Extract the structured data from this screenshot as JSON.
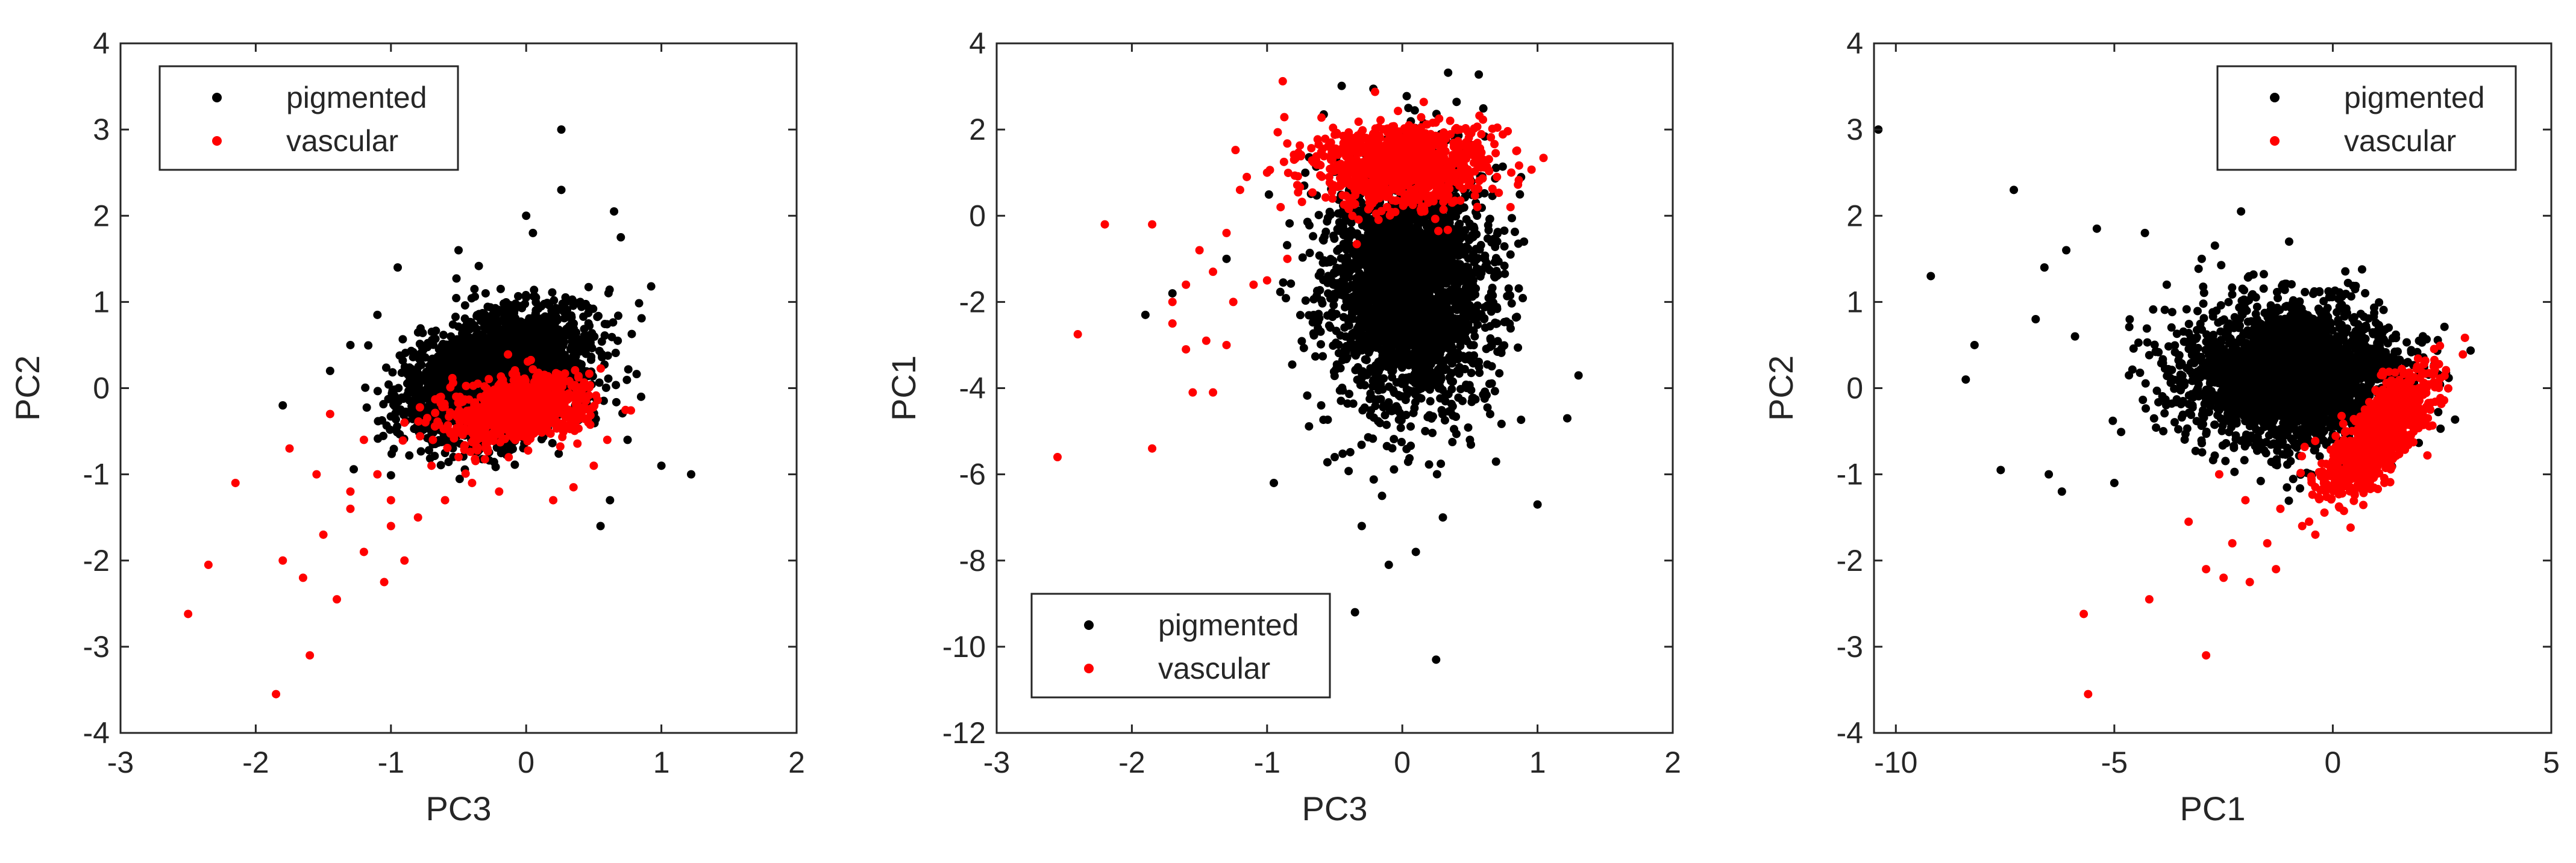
{
  "colors": {
    "pigmented": "#000000",
    "vascular": "#ff0000",
    "axis": "#262626",
    "background": "#ffffff"
  },
  "chart_data": [
    {
      "type": "scatter",
      "xlabel": "PC3",
      "ylabel": "PC2",
      "xlim": [
        -3,
        2
      ],
      "ylim": [
        -4,
        4
      ],
      "xticks": [
        -3,
        -2,
        -1,
        0,
        1,
        2
      ],
      "yticks": [
        -4,
        -3,
        -2,
        -1,
        0,
        1,
        2,
        3,
        4
      ],
      "grid": false,
      "legend_position": "top-left",
      "series": [
        {
          "name": "pigmented",
          "color": "#000000",
          "cloud": {
            "n": 2600,
            "cx": -0.2,
            "cy": 0.15,
            "sx": 0.33,
            "sy": 0.38,
            "rho": 0.35
          },
          "points": [
            [
              0.26,
              3.0
            ],
            [
              0.26,
              2.3
            ],
            [
              0.65,
              2.05
            ],
            [
              0.7,
              1.75
            ],
            [
              0.0,
              2.0
            ],
            [
              0.05,
              1.8
            ],
            [
              -0.5,
              1.6
            ],
            [
              -0.95,
              1.4
            ],
            [
              -1.1,
              0.85
            ],
            [
              -1.3,
              0.5
            ],
            [
              -1.45,
              0.2
            ],
            [
              -1.8,
              -0.2
            ],
            [
              1.22,
              -1.0
            ],
            [
              1.0,
              -0.9
            ],
            [
              0.85,
              -0.1
            ],
            [
              0.75,
              -0.6
            ],
            [
              0.55,
              -1.6
            ],
            [
              0.62,
              -1.3
            ],
            [
              -0.3,
              1.1
            ],
            [
              0.4,
              1.0
            ]
          ]
        },
        {
          "name": "vascular",
          "color": "#ff0000",
          "cloud": {
            "n": 900,
            "cx": -0.05,
            "cy": -0.25,
            "sx": 0.25,
            "sy": 0.2,
            "rho": 0.3
          },
          "points": [
            [
              -2.5,
              -2.62
            ],
            [
              -2.35,
              -2.05
            ],
            [
              -2.15,
              -1.1
            ],
            [
              -1.85,
              -3.55
            ],
            [
              -1.6,
              -3.1
            ],
            [
              -1.8,
              -2.0
            ],
            [
              -1.65,
              -2.2
            ],
            [
              -1.4,
              -2.45
            ],
            [
              -1.75,
              -0.7
            ],
            [
              -1.55,
              -1.0
            ],
            [
              -1.5,
              -1.7
            ],
            [
              -1.3,
              -1.4
            ],
            [
              -1.2,
              -1.9
            ],
            [
              -1.05,
              -2.25
            ],
            [
              -0.9,
              -2.0
            ],
            [
              -1.0,
              -1.6
            ],
            [
              -0.8,
              -1.5
            ],
            [
              -1.1,
              -1.0
            ],
            [
              -0.6,
              -1.3
            ],
            [
              -0.4,
              -1.1
            ],
            [
              -1.45,
              -0.3
            ],
            [
              -1.2,
              -0.6
            ],
            [
              -0.9,
              -0.4
            ],
            [
              -1.3,
              -1.2
            ],
            [
              0.2,
              -1.3
            ],
            [
              0.35,
              -1.15
            ],
            [
              -0.2,
              -1.2
            ],
            [
              -0.7,
              -0.9
            ],
            [
              0.5,
              -0.9
            ],
            [
              0.6,
              -0.6
            ],
            [
              -0.5,
              -0.8
            ],
            [
              -1.0,
              -1.3
            ]
          ]
        }
      ]
    },
    {
      "type": "scatter",
      "xlabel": "PC3",
      "ylabel": "PC1",
      "xlim": [
        -3,
        2
      ],
      "ylim": [
        -12,
        4
      ],
      "xticks": [
        -3,
        -2,
        -1,
        0,
        1,
        2
      ],
      "yticks": [
        -12,
        -10,
        -8,
        -6,
        -4,
        -2,
        0,
        2,
        4
      ],
      "grid": false,
      "legend_position": "bottom-left",
      "series": [
        {
          "name": "pigmented",
          "color": "#000000",
          "cloud": {
            "n": 2600,
            "cx": 0.05,
            "cy": -1.6,
            "sx": 0.3,
            "sy": 1.45,
            "rho": 0.0
          },
          "points": [
            [
              0.25,
              -10.3
            ],
            [
              -0.35,
              -9.2
            ],
            [
              -0.1,
              -8.1
            ],
            [
              0.1,
              -7.8
            ],
            [
              1.0,
              -6.7
            ],
            [
              1.22,
              -4.7
            ],
            [
              -0.95,
              -6.2
            ],
            [
              -1.3,
              -1.0
            ],
            [
              -1.7,
              -1.8
            ],
            [
              -1.9,
              -2.3
            ],
            [
              0.9,
              -0.6
            ],
            [
              0.8,
              -0.9
            ],
            [
              0.7,
              -2.5
            ],
            [
              -0.3,
              -7.2
            ],
            [
              0.3,
              -7.0
            ],
            [
              -0.15,
              -6.5
            ],
            [
              0.5,
              -5.2
            ],
            [
              -0.6,
              -4.4
            ],
            [
              -0.5,
              -5.6
            ]
          ]
        },
        {
          "name": "vascular",
          "color": "#ff0000",
          "cloud": {
            "n": 900,
            "cx": 0.0,
            "cy": 1.2,
            "sx": 0.32,
            "sy": 0.5,
            "rho": 0.0
          },
          "points": [
            [
              -2.55,
              -5.6
            ],
            [
              -2.4,
              -2.75
            ],
            [
              -1.85,
              -5.4
            ],
            [
              -2.2,
              -0.2
            ],
            [
              -1.85,
              -0.2
            ],
            [
              -1.7,
              -2.0
            ],
            [
              -1.6,
              -3.1
            ],
            [
              -1.55,
              -4.1
            ],
            [
              -1.4,
              -4.1
            ],
            [
              -1.5,
              -0.8
            ],
            [
              -1.4,
              -1.3
            ],
            [
              -1.3,
              -0.4
            ],
            [
              -1.2,
              0.6
            ],
            [
              -1.1,
              -1.6
            ],
            [
              -1.0,
              1.0
            ],
            [
              -0.9,
              0.2
            ],
            [
              -1.6,
              -1.6
            ],
            [
              -1.45,
              -2.9
            ],
            [
              -1.3,
              -3.0
            ],
            [
              -1.7,
              -2.5
            ],
            [
              -1.25,
              -2.0
            ],
            [
              -1.0,
              -1.5
            ],
            [
              -0.85,
              -1.0
            ],
            [
              -1.15,
              0.9
            ],
            [
              -0.8,
              1.3
            ],
            [
              0.8,
              0.2
            ],
            [
              0.7,
              0.9
            ],
            [
              0.6,
              1.3
            ]
          ]
        }
      ]
    },
    {
      "type": "scatter",
      "xlabel": "PC1",
      "ylabel": "PC2",
      "xlim": [
        -10.5,
        5
      ],
      "ylim": [
        -4,
        4
      ],
      "xticks": [
        -10,
        -5,
        0,
        5
      ],
      "yticks": [
        -4,
        -3,
        -2,
        -1,
        0,
        1,
        2,
        3,
        4
      ],
      "grid": false,
      "legend_position": "top-right",
      "series": [
        {
          "name": "pigmented",
          "color": "#000000",
          "cloud": {
            "n": 2600,
            "cx": -0.9,
            "cy": 0.15,
            "sx": 1.25,
            "sy": 0.42,
            "rho": 0.0
          },
          "points": [
            [
              -10.4,
              3.0
            ],
            [
              -7.3,
              2.3
            ],
            [
              -9.2,
              1.3
            ],
            [
              -8.2,
              0.5
            ],
            [
              -8.4,
              0.1
            ],
            [
              -7.6,
              -0.95
            ],
            [
              -6.5,
              -1.0
            ],
            [
              -6.2,
              -1.2
            ],
            [
              -5.0,
              -1.1
            ],
            [
              -2.1,
              2.05
            ],
            [
              -5.4,
              1.85
            ],
            [
              -6.6,
              1.4
            ],
            [
              -6.1,
              1.6
            ],
            [
              -4.3,
              1.8
            ],
            [
              -3.8,
              1.2
            ],
            [
              -1.0,
              1.7
            ],
            [
              -6.8,
              0.8
            ],
            [
              -5.9,
              0.6
            ],
            [
              -3.0,
              1.5
            ]
          ]
        },
        {
          "name": "vascular",
          "color": "#ff0000",
          "cloud": {
            "n": 900,
            "cx": 1.05,
            "cy": -0.55,
            "sx": 0.6,
            "sy": 0.35,
            "rho": 0.75
          },
          "points": [
            [
              -5.6,
              -3.55
            ],
            [
              -5.7,
              -2.62
            ],
            [
              -4.2,
              -2.45
            ],
            [
              -2.9,
              -3.1
            ],
            [
              -3.3,
              -1.55
            ],
            [
              -2.9,
              -2.1
            ],
            [
              -2.5,
              -2.2
            ],
            [
              -2.3,
              -1.8
            ],
            [
              -1.9,
              -2.25
            ],
            [
              -1.3,
              -2.1
            ],
            [
              -0.7,
              -1.6
            ],
            [
              -2.0,
              -1.3
            ],
            [
              -1.2,
              -1.4
            ],
            [
              -0.4,
              -1.7
            ],
            [
              -2.6,
              -1.0
            ],
            [
              -1.5,
              -1.8
            ]
          ]
        }
      ]
    }
  ]
}
